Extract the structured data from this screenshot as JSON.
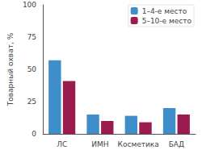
{
  "chart_data": {
    "type": "bar",
    "categories": [
      "ЛС",
      "ИМН",
      "Косметика",
      "БАД"
    ],
    "series": [
      {
        "name": "1–4-е место",
        "color": "#3d8ec9",
        "values": [
          57,
          15,
          14,
          20
        ]
      },
      {
        "name": "5–10-е место",
        "color": "#9b1b4f",
        "values": [
          41,
          10,
          9,
          15
        ]
      }
    ],
    "ylabel": "Товарный охват, %",
    "ylim": [
      0,
      100
    ],
    "yticks": [
      0,
      25,
      50,
      75,
      100
    ],
    "grid": false,
    "legend": "upper right"
  }
}
